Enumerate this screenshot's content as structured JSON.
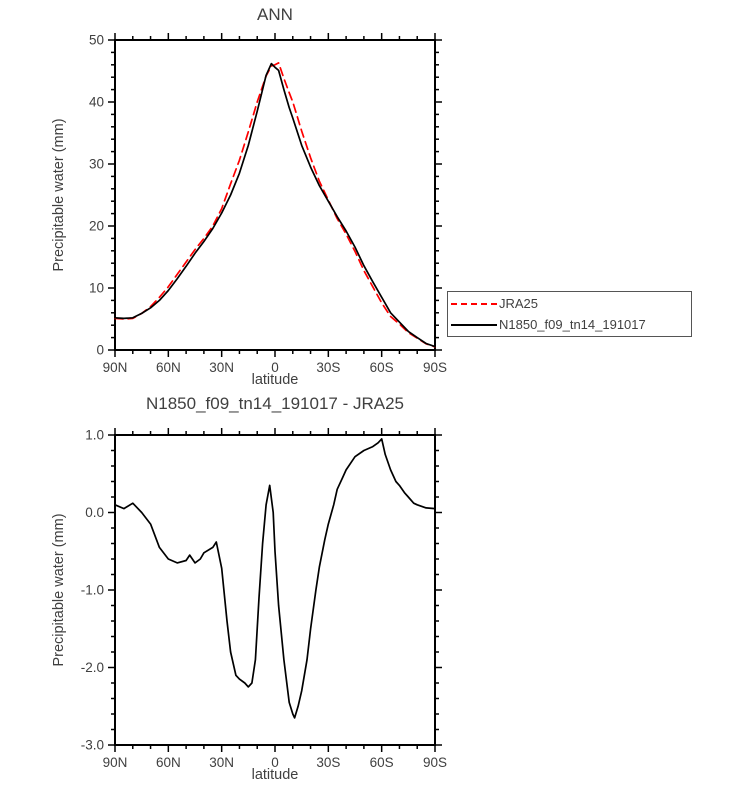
{
  "colors": {
    "background": "#ffffff",
    "axis": "#000000",
    "text": "#404040",
    "jra25": "#ff0000",
    "model": "#000000"
  },
  "legend": {
    "items": [
      "JRA25",
      "N1850_f09_tn14_191017"
    ]
  },
  "chart_data": [
    {
      "type": "line",
      "title": "ANN",
      "xlabel": "latitude",
      "ylabel": "Precipitable water (mm)",
      "xlim": [
        90,
        -90
      ],
      "ylim": [
        0,
        50
      ],
      "xticks": {
        "values": [
          90,
          60,
          30,
          0,
          -30,
          -60,
          -90
        ],
        "labels": [
          "90N",
          "60N",
          "30N",
          "0",
          "30S",
          "60S",
          "90S"
        ],
        "minor_step": 10
      },
      "yticks": {
        "values": [
          0,
          10,
          20,
          30,
          40,
          50
        ],
        "labels": [
          "0",
          "10",
          "20",
          "30",
          "40",
          "50"
        ],
        "minor_step": 2
      },
      "legend_position": "right-outside",
      "grid": false,
      "series": [
        {
          "name": "JRA25",
          "color": "#ff0000",
          "dash": "dashed",
          "points": [
            [
              90,
              5.1
            ],
            [
              85,
              5.0
            ],
            [
              80,
              5.1
            ],
            [
              75,
              5.9
            ],
            [
              70,
              7.0
            ],
            [
              65,
              8.5
            ],
            [
              60,
              10.2
            ],
            [
              55,
              12.2
            ],
            [
              50,
              14.2
            ],
            [
              45,
              16.2
            ],
            [
              40,
              18.0
            ],
            [
              35,
              20.0
            ],
            [
              30,
              22.8
            ],
            [
              25,
              26.8
            ],
            [
              20,
              30.6
            ],
            [
              15,
              35.2
            ],
            [
              10,
              40.0
            ],
            [
              5,
              44.2
            ],
            [
              2,
              45.8
            ],
            [
              0,
              46.0
            ],
            [
              -2,
              46.3
            ],
            [
              -5,
              43.8
            ],
            [
              -8,
              41.5
            ],
            [
              -10,
              40.0
            ],
            [
              -15,
              35.3
            ],
            [
              -20,
              31.0
            ],
            [
              -25,
              27.2
            ],
            [
              -30,
              24.2
            ],
            [
              -35,
              21.2
            ],
            [
              -40,
              18.7
            ],
            [
              -45,
              15.9
            ],
            [
              -50,
              12.8
            ],
            [
              -55,
              10.2
            ],
            [
              -60,
              7.6
            ],
            [
              -65,
              5.4
            ],
            [
              -70,
              4.2
            ],
            [
              -75,
              2.8
            ],
            [
              -80,
              1.9
            ],
            [
              -85,
              1.0
            ],
            [
              -90,
              0.5
            ]
          ]
        },
        {
          "name": "N1850_f09_tn14_191017",
          "color": "#000000",
          "dash": "solid",
          "points": [
            [
              90,
              5.2
            ],
            [
              85,
              5.1
            ],
            [
              80,
              5.2
            ],
            [
              75,
              5.9
            ],
            [
              70,
              6.8
            ],
            [
              65,
              8.0
            ],
            [
              60,
              9.6
            ],
            [
              55,
              11.5
            ],
            [
              50,
              13.5
            ],
            [
              45,
              15.6
            ],
            [
              40,
              17.5
            ],
            [
              35,
              19.6
            ],
            [
              30,
              22.1
            ],
            [
              25,
              25.0
            ],
            [
              20,
              28.5
            ],
            [
              15,
              33.0
            ],
            [
              10,
              38.5
            ],
            [
              5,
              44.3
            ],
            [
              2,
              46.2
            ],
            [
              0,
              45.6
            ],
            [
              -2,
              45.1
            ],
            [
              -5,
              42.0
            ],
            [
              -8,
              39.1
            ],
            [
              -10,
              37.4
            ],
            [
              -15,
              33.0
            ],
            [
              -20,
              29.5
            ],
            [
              -25,
              26.5
            ],
            [
              -30,
              24.0
            ],
            [
              -35,
              21.5
            ],
            [
              -40,
              19.2
            ],
            [
              -45,
              16.6
            ],
            [
              -50,
              13.6
            ],
            [
              -55,
              11.0
            ],
            [
              -60,
              8.5
            ],
            [
              -65,
              6.0
            ],
            [
              -70,
              4.5
            ],
            [
              -75,
              3.0
            ],
            [
              -80,
              2.0
            ],
            [
              -85,
              1.05
            ],
            [
              -90,
              0.55
            ]
          ]
        }
      ]
    },
    {
      "type": "line",
      "title": "N1850_f09_tn14_191017 - JRA25",
      "xlabel": "latitude",
      "ylabel": "Precipitable water (mm)",
      "xlim": [
        90,
        -90
      ],
      "ylim": [
        -3.0,
        1.0
      ],
      "xticks": {
        "values": [
          90,
          60,
          30,
          0,
          -30,
          -60,
          -90
        ],
        "labels": [
          "90N",
          "60N",
          "30N",
          "0",
          "30S",
          "60S",
          "90S"
        ],
        "minor_step": 10
      },
      "yticks": {
        "values": [
          -3.0,
          -2.0,
          -1.0,
          0.0,
          1.0
        ],
        "labels": [
          "-3.0",
          "-2.0",
          "-1.0",
          "0.0",
          "1.0"
        ],
        "minor_step": 0.2
      },
      "grid": false,
      "series": [
        {
          "name": "N1850_f09_tn14_191017 - JRA25",
          "color": "#000000",
          "dash": "solid",
          "points": [
            [
              90,
              0.1
            ],
            [
              85,
              0.05
            ],
            [
              80,
              0.12
            ],
            [
              75,
              0.0
            ],
            [
              70,
              -0.15
            ],
            [
              65,
              -0.45
            ],
            [
              60,
              -0.6
            ],
            [
              55,
              -0.65
            ],
            [
              50,
              -0.62
            ],
            [
              48,
              -0.55
            ],
            [
              45,
              -0.65
            ],
            [
              42,
              -0.6
            ],
            [
              40,
              -0.52
            ],
            [
              35,
              -0.45
            ],
            [
              33,
              -0.38
            ],
            [
              30,
              -0.72
            ],
            [
              27,
              -1.4
            ],
            [
              25,
              -1.8
            ],
            [
              22,
              -2.1
            ],
            [
              20,
              -2.15
            ],
            [
              17,
              -2.2
            ],
            [
              15,
              -2.25
            ],
            [
              13,
              -2.2
            ],
            [
              11,
              -1.9
            ],
            [
              9,
              -1.1
            ],
            [
              7,
              -0.4
            ],
            [
              5,
              0.1
            ],
            [
              3,
              0.35
            ],
            [
              1,
              0.0
            ],
            [
              0,
              -0.5
            ],
            [
              -2,
              -1.2
            ],
            [
              -5,
              -1.9
            ],
            [
              -8,
              -2.45
            ],
            [
              -10,
              -2.6
            ],
            [
              -11,
              -2.65
            ],
            [
              -13,
              -2.5
            ],
            [
              -15,
              -2.3
            ],
            [
              -18,
              -1.9
            ],
            [
              -20,
              -1.5
            ],
            [
              -23,
              -1.0
            ],
            [
              -25,
              -0.7
            ],
            [
              -28,
              -0.35
            ],
            [
              -30,
              -0.15
            ],
            [
              -33,
              0.1
            ],
            [
              -35,
              0.3
            ],
            [
              -38,
              0.45
            ],
            [
              -40,
              0.55
            ],
            [
              -45,
              0.72
            ],
            [
              -50,
              0.8
            ],
            [
              -55,
              0.85
            ],
            [
              -58,
              0.9
            ],
            [
              -60,
              0.95
            ],
            [
              -62,
              0.75
            ],
            [
              -65,
              0.55
            ],
            [
              -68,
              0.4
            ],
            [
              -70,
              0.35
            ],
            [
              -73,
              0.25
            ],
            [
              -75,
              0.2
            ],
            [
              -78,
              0.12
            ],
            [
              -80,
              0.1
            ],
            [
              -85,
              0.06
            ],
            [
              -90,
              0.05
            ]
          ]
        }
      ]
    }
  ]
}
